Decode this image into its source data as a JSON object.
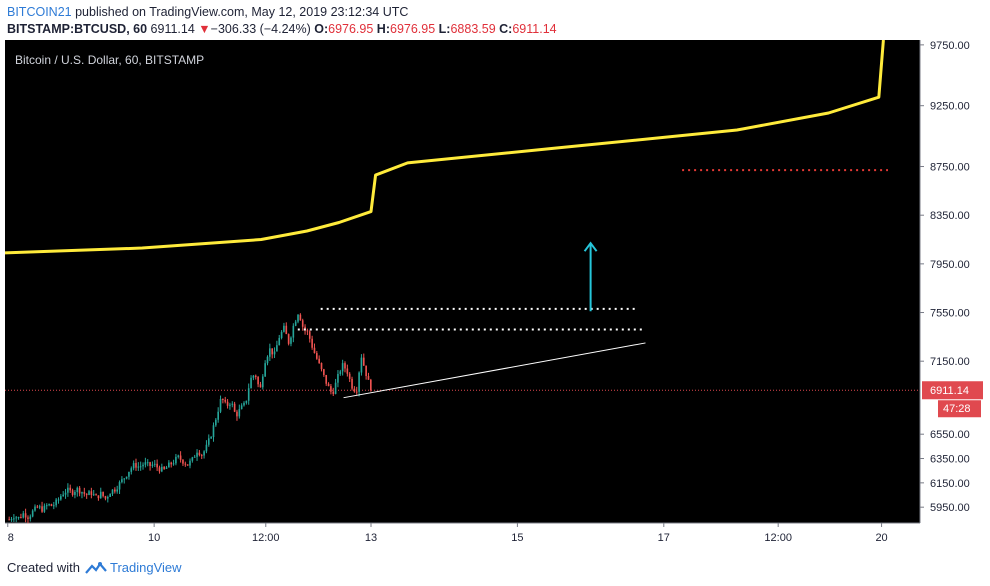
{
  "header": {
    "username": "BITCOIN21",
    "published_text": "published on TradingView.com, May 12, 2019 23:12:34 UTC",
    "symbol": "BITSTAMP:BTCUSD, 60",
    "last": "6911.14",
    "change_arrow": "▼",
    "change": "−306.33 (−4.24%)",
    "o_label": "O:",
    "o_value": "6976.95",
    "h_label": "H:",
    "h_value": "6976.95",
    "l_label": "L:",
    "l_value": "6883.59",
    "c_label": "C:",
    "c_value": "6911.14"
  },
  "footer": {
    "created_with": "Created with",
    "brand": "TradingView"
  },
  "colors": {
    "background": "#000000",
    "axis_bg": "#ffffff",
    "up": "#26a69a",
    "down": "#ef5350",
    "yellow_line": "#ffeb3b",
    "cyan_arrow": "#26c6da",
    "price_label": "#e0494f"
  },
  "chart_data": {
    "type": "candlestick",
    "title": "Bitcoin / U.S. Dollar, 60, BITSTAMP",
    "ylim": [
      5820,
      9790
    ],
    "y_ticks": [
      "9750.00",
      "9250.00",
      "8750.00",
      "8350.00",
      "7950.00",
      "7550.00",
      "7150.00",
      "6550.00",
      "6350.00",
      "6150.00",
      "5950.00"
    ],
    "x_ticks": [
      "8",
      "10",
      "12:00",
      "13",
      "15",
      "17",
      "12:00",
      "20"
    ],
    "last_price": "6911.14",
    "countdown": "47:28",
    "ohlc_path": [
      5850,
      5880,
      5860,
      5900,
      5870,
      5920,
      5950,
      5930,
      5970,
      5960,
      6000,
      6060,
      6090,
      6070,
      6100,
      6080,
      6050,
      6070,
      6030,
      6060,
      6020,
      6080,
      6100,
      6150,
      6200,
      6260,
      6300,
      6280,
      6310,
      6290,
      6300,
      6270,
      6250,
      6290,
      6320,
      6360,
      6330,
      6300,
      6340,
      6420,
      6380,
      6450,
      6560,
      6700,
      6850,
      6780,
      6820,
      6700,
      6760,
      6800,
      7000,
      7050,
      6900,
      7150,
      7250,
      7200,
      7350,
      7420,
      7300,
      7450,
      7560,
      7420,
      7380,
      7250,
      7150,
      7050,
      6950,
      6880,
      7000,
      7120,
      7080,
      6950,
      6900,
      7200,
      7050,
      6911
    ],
    "yellow_line": [
      [
        0,
        8040
      ],
      [
        0.15,
        8080
      ],
      [
        0.28,
        8150
      ],
      [
        0.33,
        8220
      ],
      [
        0.365,
        8290
      ],
      [
        0.4,
        8380
      ],
      [
        0.405,
        8680
      ],
      [
        0.44,
        8780
      ],
      [
        0.6,
        8900
      ],
      [
        0.8,
        9050
      ],
      [
        0.9,
        9190
      ],
      [
        0.955,
        9320
      ],
      [
        0.96,
        9790
      ]
    ],
    "annotations": {
      "white_dotted_1": {
        "x": [
          0.345,
          0.69
        ],
        "price": 7580
      },
      "white_dotted_2": {
        "x": [
          0.32,
          0.7
        ],
        "price": 7410
      },
      "red_dotted": {
        "x": [
          0.74,
          0.965
        ],
        "price": 8720
      },
      "trendline": {
        "x": [
          0.37,
          0.7
        ],
        "price": [
          6850,
          7300
        ]
      },
      "arrow_up": {
        "x": 0.64,
        "from": 7560,
        "to": 8120
      }
    }
  }
}
